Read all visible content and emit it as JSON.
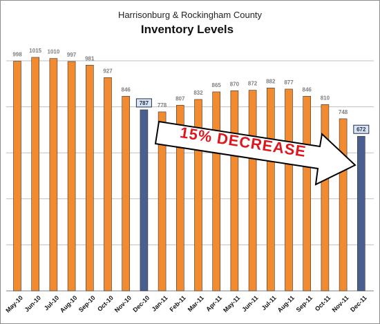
{
  "chart_data": {
    "type": "bar",
    "subtitle": "Harrisonburg & Rockingham County",
    "title": "Inventory Levels",
    "categories": [
      "May-10",
      "Jun-10",
      "Jul-10",
      "Aug-10",
      "Sep-10",
      "Oct-10",
      "Nov-10",
      "Dec-10",
      "Jan-11",
      "Feb-11",
      "Mar-11",
      "Apr-11",
      "May-11",
      "Jun-11",
      "Jul-11",
      "Aug-11",
      "Sep-11",
      "Oct-11",
      "Nov-11",
      "Dec-11"
    ],
    "values": [
      998,
      1015,
      1010,
      997,
      981,
      927,
      846,
      787,
      778,
      807,
      832,
      865,
      870,
      872,
      882,
      877,
      846,
      810,
      748,
      672
    ],
    "highlighted": [
      "Dec-10",
      "Dec-11"
    ],
    "ylim": [
      0,
      1050
    ],
    "grid": true,
    "colors": {
      "bar": "#f28a30",
      "highlight": "#4a5f8f",
      "grid": "#bfbfbf"
    },
    "annotation": "15% DECREASE"
  }
}
